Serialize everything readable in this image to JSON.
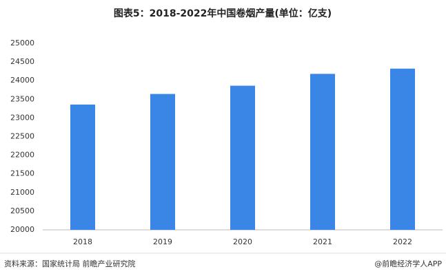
{
  "chart_data": {
    "type": "bar",
    "title": "图表5：2018-2022年中国卷烟产量(单位：亿支)",
    "categories": [
      "2018",
      "2019",
      "2020",
      "2021",
      "2022"
    ],
    "values": [
      23359,
      23643,
      23864,
      24182,
      24322
    ],
    "color": "#3a86e6",
    "ylim": [
      20000,
      25000
    ],
    "yticks": [
      20000,
      20500,
      21000,
      21500,
      22000,
      22500,
      23000,
      23500,
      24000,
      24500,
      25000
    ],
    "grid": false
  },
  "footer": {
    "source": "资料来源：国家统计局 前瞻产业研究院",
    "brand": "@前瞻经济学人APP"
  }
}
